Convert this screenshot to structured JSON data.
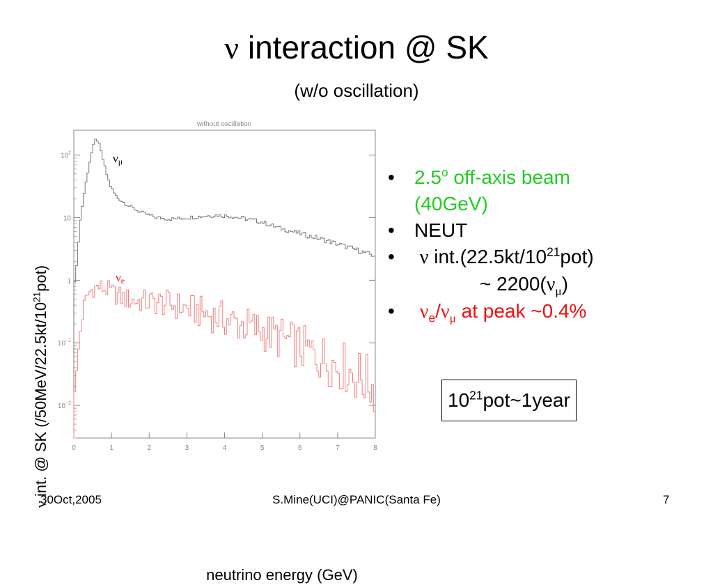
{
  "slide": {
    "title_greek": "ν",
    "title_text": " interaction @ SK",
    "subtitle": "(w/o oscillation)"
  },
  "colors": {
    "numu_line": "#777777",
    "nue_line": "#f08080",
    "green": "#22cc22",
    "red": "#ee1111"
  },
  "chart_data": {
    "type": "line",
    "title": "without oscillation",
    "xlabel": "neutrino energy (GeV)",
    "ylabel_greek": "ν",
    "ylabel_text": " int. @ SK (/50MeV/22.5kt/10",
    "ylabel_sup": "21",
    "ylabel_end": "pot)",
    "x_tick_labels": [
      "0",
      "1",
      "2",
      "3",
      "4",
      "5",
      "6",
      "7",
      "8"
    ],
    "y_tick_labels": [
      {
        "base": "10",
        "exp": "2"
      },
      {
        "base": "10",
        "exp": ""
      },
      {
        "base": "1",
        "exp": ""
      },
      {
        "base": "10",
        "exp": "−1"
      },
      {
        "base": "10",
        "exp": "−2"
      }
    ],
    "xlim": [
      0,
      8
    ],
    "ylim": [
      0.003,
      250
    ],
    "y_scale": "log",
    "series": [
      {
        "label_main": "ν",
        "label_sub": "μ",
        "x": [
          0.05,
          0.15,
          0.25,
          0.35,
          0.45,
          0.55,
          0.6,
          0.65,
          0.75,
          0.85,
          0.95,
          1.05,
          1.15,
          1.3,
          1.5,
          1.8,
          2.2,
          2.6,
          3.0,
          3.4,
          3.8,
          4.2,
          4.6,
          5.0,
          5.4,
          5.8,
          6.2,
          6.6,
          7.0,
          7.4,
          7.7,
          7.95
        ],
        "y": [
          1.0,
          7,
          20,
          45,
          95,
          160,
          185,
          165,
          100,
          55,
          35,
          26,
          21,
          18,
          15,
          12,
          10,
          9.5,
          10,
          10.5,
          11,
          10.5,
          9.5,
          8.5,
          7,
          6,
          5.2,
          4.5,
          3.8,
          3.2,
          2.8,
          2.5
        ]
      },
      {
        "label_main": "ν",
        "label_sub": "e",
        "x": [
          0.05,
          0.15,
          0.25,
          0.35,
          0.45,
          0.55,
          0.65,
          0.75,
          0.9,
          1.1,
          1.3,
          1.6,
          2.0,
          2.4,
          2.8,
          3.2,
          3.6,
          4.0,
          4.4,
          4.8,
          5.2,
          5.6,
          6.0,
          6.4,
          6.8,
          7.2,
          7.5,
          7.75,
          7.95
        ],
        "y": [
          0.02,
          0.12,
          0.35,
          0.55,
          0.68,
          0.75,
          0.78,
          0.76,
          0.7,
          0.6,
          0.52,
          0.47,
          0.45,
          0.43,
          0.38,
          0.33,
          0.28,
          0.24,
          0.2,
          0.17,
          0.14,
          0.11,
          0.085,
          0.065,
          0.05,
          0.04,
          0.03,
          0.025,
          0.02
        ]
      }
    ]
  },
  "bullets": {
    "b1_text": "2.5",
    "b1_sup": "o",
    "b1_rest": " off-axis beam",
    "b1_line2": "(40GeV)",
    "b2": "NEUT",
    "b3_greek": "ν",
    "b3_text": " int.(22.5kt/10",
    "b3_sup": "21",
    "b3_end": "pot)",
    "b4_text": "~ 2200(",
    "b4_greek": "ν",
    "b4_sub": "μ",
    "b4_end": ")",
    "b5_greek1": "ν",
    "b5_sub1": "e",
    "b5_slash": "/",
    "b5_greek2": "ν",
    "b5_sub2": "μ",
    "b5_rest": " at peak ~0.4%",
    "dot": "•"
  },
  "box": {
    "base": "10",
    "sup": "21",
    "rest": "pot~1year"
  },
  "footer": {
    "date": "30Oct,2005",
    "author": "S.Mine(UCI)@PANIC(Santa Fe)",
    "page": "7"
  }
}
